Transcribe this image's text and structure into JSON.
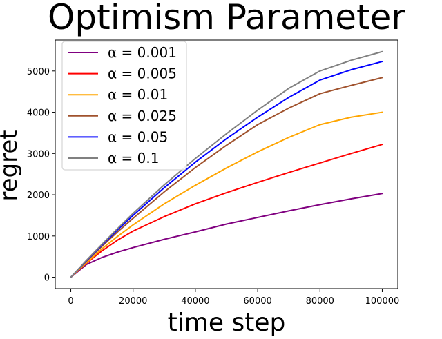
{
  "chart_data": {
    "type": "line",
    "title": "Optimism Parameter",
    "xlabel": "time step",
    "ylabel": "regret",
    "xlim": [
      -5000,
      105000
    ],
    "ylim": [
      -275,
      5750
    ],
    "xticks": [
      0,
      20000,
      40000,
      60000,
      80000,
      100000
    ],
    "yticks": [
      0,
      1000,
      2000,
      3000,
      4000,
      5000
    ],
    "grid": false,
    "legend_position": "top-left",
    "x": [
      0,
      5000,
      10000,
      15000,
      20000,
      30000,
      40000,
      50000,
      60000,
      70000,
      80000,
      90000,
      100000
    ],
    "series": [
      {
        "name": "α = 0.001",
        "color": "#800080",
        "values": [
          0,
          310,
          480,
          610,
          720,
          920,
          1100,
          1290,
          1450,
          1610,
          1760,
          1900,
          2030
        ]
      },
      {
        "name": "α = 0.005",
        "color": "#ff0000",
        "values": [
          0,
          340,
          640,
          900,
          1120,
          1470,
          1780,
          2050,
          2300,
          2540,
          2770,
          3000,
          3220
        ]
      },
      {
        "name": "α = 0.01",
        "color": "#ffa500",
        "values": [
          0,
          350,
          690,
          990,
          1270,
          1780,
          2230,
          2650,
          3040,
          3390,
          3700,
          3880,
          4000
        ]
      },
      {
        "name": "α = 0.025",
        "color": "#a0522d",
        "values": [
          0,
          390,
          750,
          1100,
          1430,
          2070,
          2660,
          3200,
          3700,
          4100,
          4450,
          4650,
          4840
        ]
      },
      {
        "name": "α = 0.05",
        "color": "#0000ff",
        "values": [
          0,
          400,
          780,
          1150,
          1500,
          2170,
          2790,
          3360,
          3880,
          4360,
          4780,
          5030,
          5230
        ]
      },
      {
        "name": "α = 0.1",
        "color": "#808080",
        "values": [
          0,
          410,
          800,
          1180,
          1550,
          2240,
          2880,
          3480,
          4050,
          4580,
          5000,
          5260,
          5470
        ]
      }
    ]
  }
}
